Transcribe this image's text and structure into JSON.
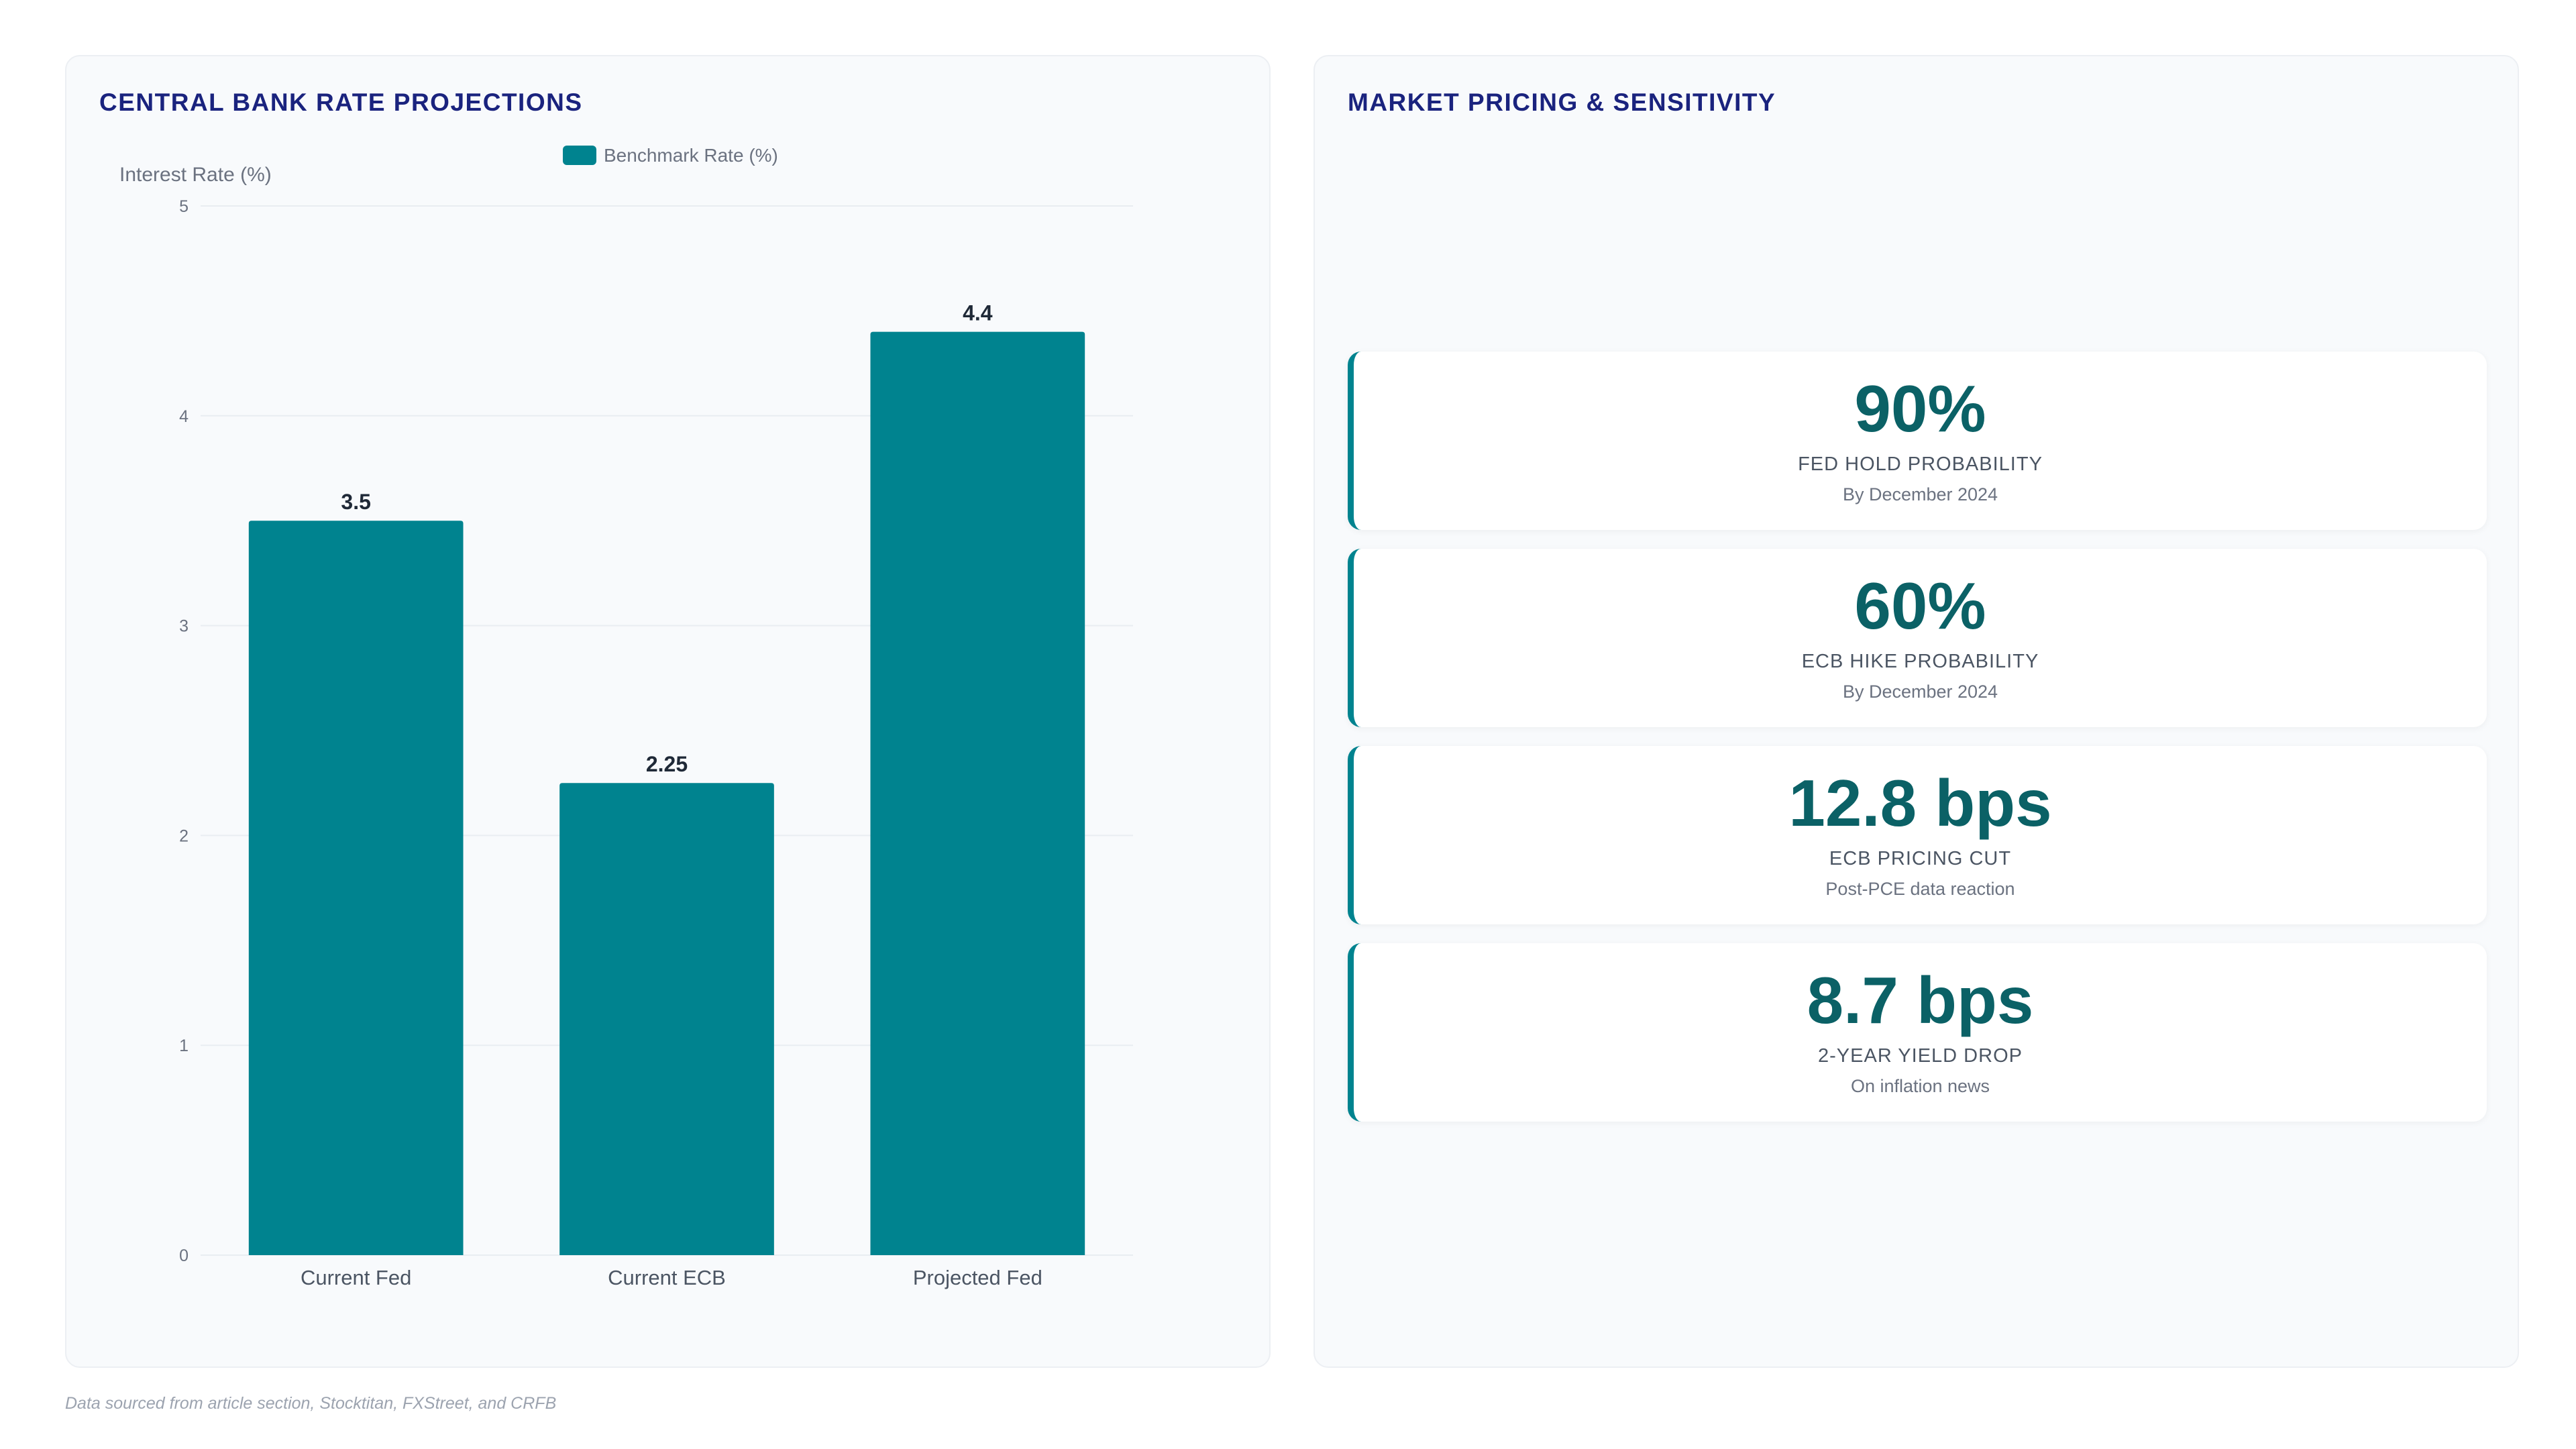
{
  "left_panel": {
    "title": "CENTRAL BANK RATE PROJECTIONS"
  },
  "right_panel": {
    "title": "MARKET PRICING & SENSITIVITY",
    "cards": [
      {
        "value": "90%",
        "label": "FED HOLD PROBABILITY",
        "sub": "By December 2024"
      },
      {
        "value": "60%",
        "label": "ECB HIKE PROBABILITY",
        "sub": "By December 2024"
      },
      {
        "value": "12.8 bps",
        "label": "ECB PRICING CUT",
        "sub": "Post-PCE data reaction"
      },
      {
        "value": "8.7 bps",
        "label": "2-YEAR YIELD DROP",
        "sub": "On inflation news"
      }
    ]
  },
  "footnote": "Data sourced from article section, Stocktitan, FXStreet, and CRFB",
  "chart_data": {
    "type": "bar",
    "categories": [
      "Current Fed",
      "Current ECB",
      "Projected Fed"
    ],
    "series": [
      {
        "name": "Benchmark Rate (%)",
        "values": [
          3.5,
          2.25,
          4.4
        ]
      }
    ],
    "data_labels": [
      "3.5",
      "2.25",
      "4.4"
    ],
    "ylabel": "Interest Rate (%)",
    "xlabel": "",
    "ylim": [
      0,
      5
    ],
    "yticks": [
      0,
      1,
      2,
      3,
      4,
      5
    ],
    "grid": true,
    "legend": "top-center",
    "bar_color": "#00838f"
  }
}
